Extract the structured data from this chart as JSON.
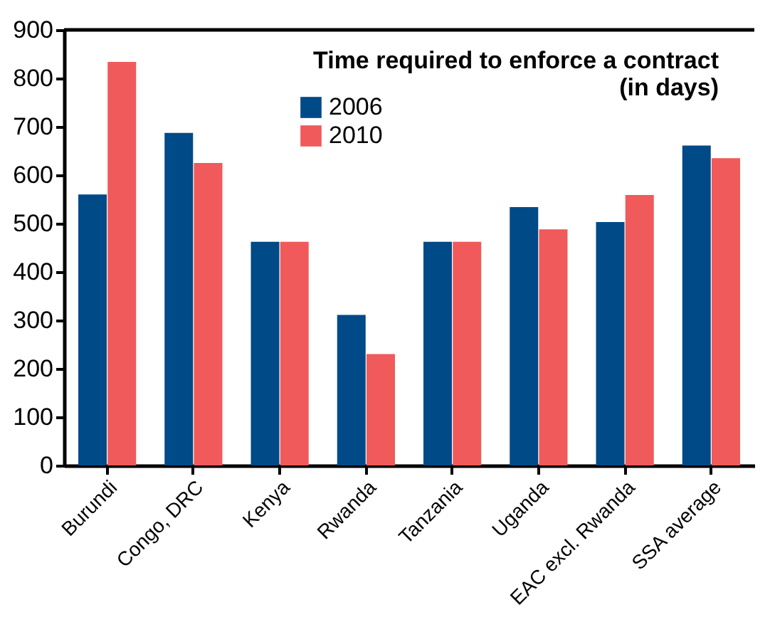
{
  "chart_data": {
    "type": "bar",
    "title": "Time required to enforce a contract\n(in days)",
    "categories": [
      "Burundi",
      "Congo, DRC",
      "Kenya",
      "Rwanda",
      "Tanzania",
      "Uganda",
      "EAC excl. Rwanda",
      "SSA average"
    ],
    "series": [
      {
        "name": "2006",
        "color": "#004a87",
        "values": [
          560,
          687,
          462,
          311,
          462,
          534,
          503,
          661
        ]
      },
      {
        "name": "2010",
        "color": "#f05a5a",
        "values": [
          834,
          625,
          462,
          230,
          462,
          488,
          559,
          635
        ]
      }
    ],
    "ylim": [
      0,
      900
    ],
    "yticks": [
      0,
      100,
      200,
      300,
      400,
      500,
      600,
      700,
      800,
      900
    ],
    "grid": false,
    "legend": "top left"
  }
}
